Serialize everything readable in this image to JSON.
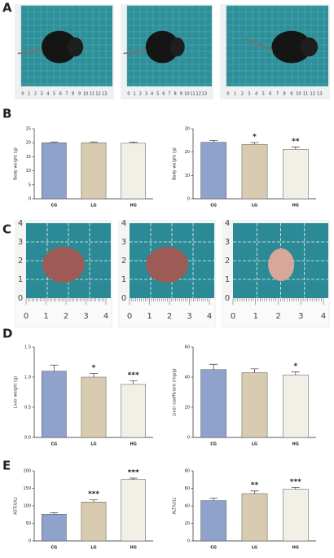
{
  "panels": [
    "A",
    "B",
    "C",
    "D",
    "E"
  ],
  "ruler_a": [
    0,
    1,
    2,
    3,
    4,
    5,
    6,
    7,
    8,
    9,
    10,
    11,
    12,
    13
  ],
  "ruler_c": [
    0,
    1,
    2,
    3,
    4
  ],
  "chart_data": [
    {
      "type": "bar",
      "ylabel": "Body weight (g)",
      "categories": [
        "CG",
        "LG",
        "HG"
      ],
      "values": [
        20,
        20,
        19.8
      ],
      "errors": [
        0.3,
        0.3,
        0.4
      ],
      "significance": [
        null,
        null,
        null
      ],
      "colors": [
        "#8fa2cb",
        "#d8cbb0",
        "#f2efe7"
      ],
      "ylim": [
        0,
        25
      ],
      "yticks": [
        0,
        5,
        10,
        15,
        20,
        25
      ]
    },
    {
      "type": "bar",
      "ylabel": "Body weight (g)",
      "categories": [
        "CG",
        "LG",
        "HG"
      ],
      "values": [
        24.2,
        23.3,
        21.2
      ],
      "errors": [
        0.8,
        0.8,
        1.0
      ],
      "significance": [
        null,
        "*",
        "**"
      ],
      "colors": [
        "#8fa2cb",
        "#d8cbb0",
        "#f2efe7"
      ],
      "ylim": [
        0,
        30
      ],
      "yticks": [
        0,
        10,
        20,
        30
      ]
    },
    {
      "type": "bar",
      "ylabel": "Liver weight (g)",
      "categories": [
        "CG",
        "LG",
        "HG"
      ],
      "values": [
        1.1,
        1.0,
        0.88
      ],
      "errors": [
        0.1,
        0.06,
        0.06
      ],
      "significance": [
        null,
        "*",
        "***"
      ],
      "colors": [
        "#8fa2cb",
        "#d8cbb0",
        "#f2efe7"
      ],
      "ylim": [
        0,
        1.5
      ],
      "yticks": [
        {
          "value": 0,
          "label": "0.0"
        },
        {
          "value": 0.5,
          "label": "0.5"
        },
        {
          "value": 1,
          "label": "1.0"
        },
        {
          "value": 1.5,
          "label": "1.5"
        }
      ]
    },
    {
      "type": "bar",
      "ylabel": "Liver coefficient (mg/g)",
      "categories": [
        "CG",
        "LG",
        "HG"
      ],
      "values": [
        45,
        43,
        41.5
      ],
      "errors": [
        3.5,
        2.5,
        2
      ],
      "significance": [
        null,
        null,
        "*"
      ],
      "colors": [
        "#8fa2cb",
        "#d8cbb0",
        "#f2efe7"
      ],
      "ylim": [
        0,
        60
      ],
      "yticks": [
        0,
        20,
        40,
        60
      ]
    },
    {
      "type": "bar",
      "ylabel": "AST(U/L)",
      "categories": [
        "CG",
        "LG",
        "HG"
      ],
      "values": [
        76,
        111,
        175
      ],
      "errors": [
        4,
        6,
        4
      ],
      "significance": [
        null,
        "***",
        "***"
      ],
      "colors": [
        "#8fa2cb",
        "#d8cbb0",
        "#f2efe7"
      ],
      "ylim": [
        0,
        200
      ],
      "yticks": [
        0,
        50,
        100,
        150,
        200
      ]
    },
    {
      "type": "bar",
      "ylabel": "ALT(U/L)",
      "categories": [
        "CG",
        "LG",
        "HG"
      ],
      "values": [
        46,
        54,
        59
      ],
      "errors": [
        3,
        3,
        2
      ],
      "significance": [
        null,
        "**",
        "***"
      ],
      "colors": [
        "#8fa2cb",
        "#d8cbb0",
        "#f2efe7"
      ],
      "ylim": [
        0,
        80
      ],
      "yticks": [
        0,
        20,
        40,
        60,
        80
      ]
    }
  ]
}
